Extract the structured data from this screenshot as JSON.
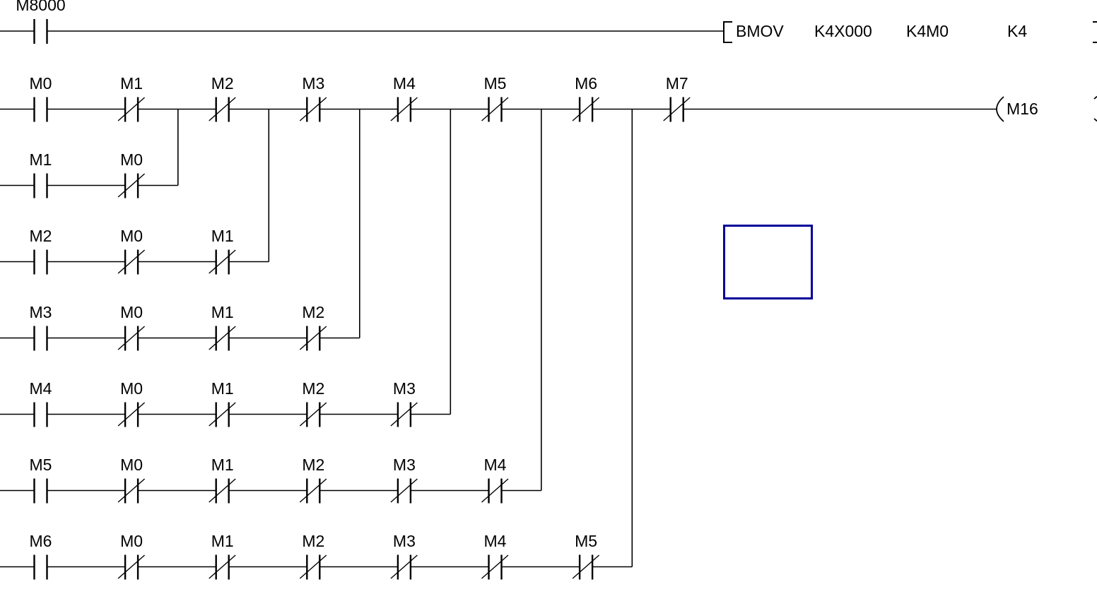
{
  "diagram": {
    "rungs": [
      {
        "name": "bmov-rung",
        "contacts": [
          {
            "label": "M8000",
            "type": "no"
          }
        ],
        "instruction": {
          "words": [
            "BMOV",
            "K4X000",
            "K4M0",
            "K4"
          ]
        }
      },
      {
        "name": "output-rung",
        "contacts": [
          {
            "label": "M0",
            "type": "no"
          },
          {
            "label": "M1",
            "type": "nc"
          },
          {
            "label": "M2",
            "type": "nc"
          },
          {
            "label": "M3",
            "type": "nc"
          },
          {
            "label": "M4",
            "type": "nc"
          },
          {
            "label": "M5",
            "type": "nc"
          },
          {
            "label": "M6",
            "type": "nc"
          },
          {
            "label": "M7",
            "type": "nc"
          }
        ],
        "coil": {
          "label": "M16"
        }
      },
      {
        "name": "or-branch-1",
        "contacts": [
          {
            "label": "M1",
            "type": "no"
          },
          {
            "label": "M0",
            "type": "nc"
          }
        ]
      },
      {
        "name": "or-branch-2",
        "contacts": [
          {
            "label": "M2",
            "type": "no"
          },
          {
            "label": "M0",
            "type": "nc"
          },
          {
            "label": "M1",
            "type": "nc"
          }
        ]
      },
      {
        "name": "or-branch-3",
        "contacts": [
          {
            "label": "M3",
            "type": "no"
          },
          {
            "label": "M0",
            "type": "nc"
          },
          {
            "label": "M1",
            "type": "nc"
          },
          {
            "label": "M2",
            "type": "nc"
          }
        ]
      },
      {
        "name": "or-branch-4",
        "contacts": [
          {
            "label": "M4",
            "type": "no"
          },
          {
            "label": "M0",
            "type": "nc"
          },
          {
            "label": "M1",
            "type": "nc"
          },
          {
            "label": "M2",
            "type": "nc"
          },
          {
            "label": "M3",
            "type": "nc"
          }
        ]
      },
      {
        "name": "or-branch-5",
        "contacts": [
          {
            "label": "M5",
            "type": "no"
          },
          {
            "label": "M0",
            "type": "nc"
          },
          {
            "label": "M1",
            "type": "nc"
          },
          {
            "label": "M2",
            "type": "nc"
          },
          {
            "label": "M3",
            "type": "nc"
          },
          {
            "label": "M4",
            "type": "nc"
          }
        ]
      },
      {
        "name": "or-branch-6",
        "contacts": [
          {
            "label": "M6",
            "type": "no"
          },
          {
            "label": "M0",
            "type": "nc"
          },
          {
            "label": "M1",
            "type": "nc"
          },
          {
            "label": "M2",
            "type": "nc"
          },
          {
            "label": "M3",
            "type": "nc"
          },
          {
            "label": "M4",
            "type": "nc"
          },
          {
            "label": "M5",
            "type": "nc"
          }
        ]
      }
    ],
    "colors": {
      "wire": "#000000",
      "cursor": "#000099"
    }
  }
}
